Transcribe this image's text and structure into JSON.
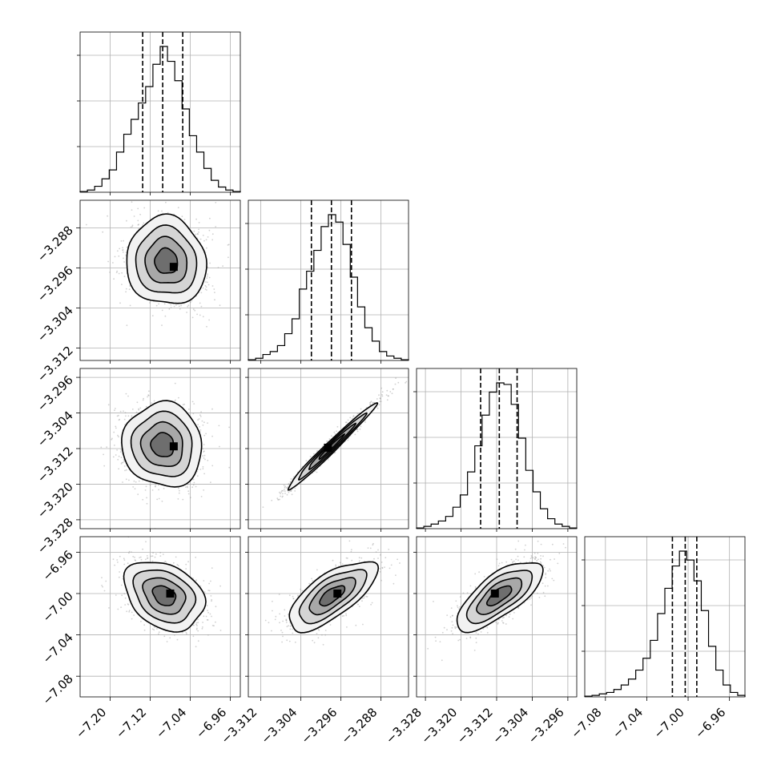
{
  "chart_data": {
    "type": "corner",
    "n_params": 4,
    "grid": true,
    "quantile_lines": "dashed",
    "params": [
      {
        "range": [
          -7.26,
          -6.94
        ],
        "ticks": [
          -7.2,
          -7.12,
          -7.04,
          -6.96
        ],
        "tick_labels": [
          "−7.20",
          "−7.12",
          "−7.04",
          "−6.96"
        ],
        "quantiles": [
          -7.135,
          -7.095,
          -7.055
        ],
        "hist": [
          0.5,
          1.5,
          4,
          9,
          15,
          27,
          39,
          49,
          60,
          71,
          86,
          98,
          88,
          75,
          56,
          38,
          27,
          16,
          8,
          3.5,
          1.5,
          0.5
        ]
      },
      {
        "range": [
          -3.3145,
          -3.2825
        ],
        "ticks": [
          -3.312,
          -3.304,
          -3.296,
          -3.288
        ],
        "tick_labels": [
          "−3.312",
          "−3.304",
          "−3.296",
          "−3.288"
        ],
        "quantiles": [
          -3.3019,
          -3.2979,
          -3.2939
        ],
        "hist": [
          0.5,
          1.5,
          4,
          6,
          10,
          18,
          28,
          48,
          60,
          74,
          90,
          98,
          93,
          78,
          56,
          36,
          22,
          13,
          6,
          3,
          1.5,
          0.5
        ]
      },
      {
        "range": [
          -3.33,
          -3.294
        ],
        "ticks": [
          -3.328,
          -3.32,
          -3.312,
          -3.304,
          -3.296
        ],
        "tick_labels": [
          "−3.328",
          "−3.320",
          "−3.312",
          "−3.304",
          "−3.296"
        ],
        "quantiles": [
          -3.3156,
          -3.3114,
          -3.3074
        ],
        "hist": [
          0.5,
          1.5,
          3,
          5,
          8,
          14,
          22,
          37,
          54,
          74,
          89,
          95,
          94,
          81,
          59,
          38,
          24,
          13,
          6.5,
          3,
          1.5,
          0.5
        ]
      },
      {
        "range": [
          -7.1,
          -6.945
        ],
        "ticks": [
          -7.08,
          -7.04,
          -7.0,
          -6.96
        ],
        "tick_labels": [
          "−7.08",
          "−7.04",
          "−7.00",
          "−6.96"
        ],
        "quantiles": [
          -7.0152,
          -7.0028,
          -6.9916
        ],
        "hist": [
          0.5,
          1,
          2,
          3,
          5,
          8,
          12,
          18,
          26,
          38,
          56,
          73,
          88,
          98,
          92,
          78,
          58,
          34,
          18,
          8,
          3,
          1
        ]
      }
    ],
    "pairs": [
      {
        "row": 1,
        "col": 0,
        "mean": [
          -7.088,
          -3.2947
        ],
        "sd": [
          0.038,
          0.0042
        ],
        "corr": -0.05,
        "mode": [
          -7.073,
          -3.2958
        ]
      },
      {
        "row": 2,
        "col": 0,
        "mean": [
          -7.095,
          -3.3112
        ],
        "sd": [
          0.038,
          0.0045
        ],
        "corr": -0.05,
        "mode": [
          -7.073,
          -3.3115
        ]
      },
      {
        "row": 2,
        "col": 1,
        "mean": [
          -3.298,
          -3.3117
        ],
        "sd": [
          0.0042,
          0.0046
        ],
        "corr": 0.985,
        "mode": [
          -3.2986,
          -3.3118
        ]
      },
      {
        "row": 3,
        "col": 0,
        "mean": [
          -7.092,
          -7.002
        ],
        "sd": [
          0.038,
          0.016
        ],
        "corr": -0.3,
        "mode": [
          -7.08,
          -7.0
        ]
      },
      {
        "row": 3,
        "col": 1,
        "mean": [
          -3.2978,
          -7.002
        ],
        "sd": [
          0.0042,
          0.016
        ],
        "corr": 0.7,
        "mode": [
          -3.2967,
          -7.0
        ]
      },
      {
        "row": 3,
        "col": 2,
        "mean": [
          -3.3114,
          -7.002
        ],
        "sd": [
          0.0046,
          0.016
        ],
        "corr": 0.72,
        "mode": [
          -3.3124,
          -7.0
        ]
      }
    ],
    "contour_levels_sigma": [
      0.6,
      1.1,
      1.6,
      2.1
    ]
  }
}
